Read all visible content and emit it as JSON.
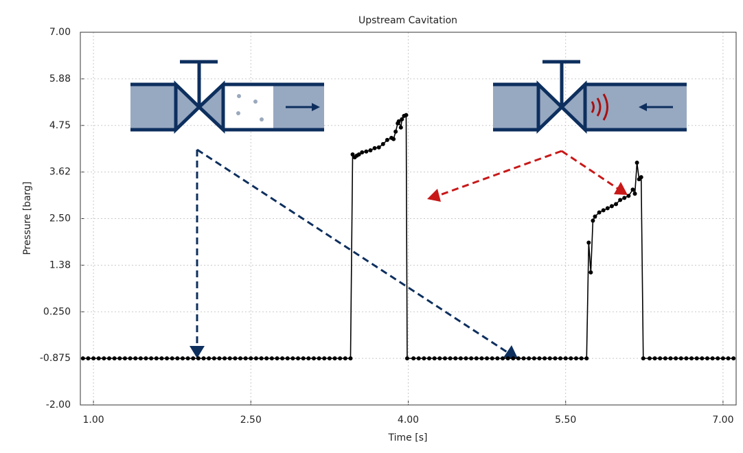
{
  "chart_data": {
    "type": "line",
    "title": "Upstream Cavitation",
    "x_label": "Time [s]",
    "y_label": "Pressure [barg]",
    "xlim": [
      0.875,
      7.125
    ],
    "ylim": [
      -2,
      7
    ],
    "xticks": [
      {
        "value": 1,
        "label": "1.00"
      },
      {
        "value": 2.5,
        "label": "2.50"
      },
      {
        "value": 4,
        "label": "4.00"
      },
      {
        "value": 5.5,
        "label": "5.50"
      },
      {
        "value": 7,
        "label": "7.00"
      }
    ],
    "yticks": [
      {
        "value": -2,
        "label": "-2.00"
      },
      {
        "value": -0.875,
        "label": "-0.875"
      },
      {
        "value": 0.25,
        "label": "0.250"
      },
      {
        "value": 1.375,
        "label": "1.38"
      },
      {
        "value": 2.5,
        "label": "2.50"
      },
      {
        "value": 3.625,
        "label": "3.62"
      },
      {
        "value": 4.75,
        "label": "4.75"
      },
      {
        "value": 5.875,
        "label": "5.88"
      },
      {
        "value": 7,
        "label": "7.00"
      }
    ],
    "grid": true,
    "markers": true,
    "color": "#000000",
    "x": [
      0.9,
      0.95,
      1,
      1.05,
      1.1,
      1.15,
      1.2,
      1.25,
      1.3,
      1.35,
      1.4,
      1.45,
      1.5,
      1.55,
      1.6,
      1.65,
      1.7,
      1.75,
      1.8,
      1.85,
      1.9,
      1.95,
      2,
      2.05,
      2.1,
      2.15,
      2.2,
      2.25,
      2.3,
      2.35,
      2.4,
      2.45,
      2.5,
      2.55,
      2.6,
      2.65,
      2.7,
      2.75,
      2.8,
      2.85,
      2.9,
      2.95,
      3,
      3.05,
      3.1,
      3.15,
      3.2,
      3.25,
      3.3,
      3.35,
      3.4,
      3.45,
      3.47,
      3.49,
      3.51,
      3.53,
      3.56,
      3.6,
      3.64,
      3.68,
      3.72,
      3.76,
      3.8,
      3.84,
      3.86,
      3.88,
      3.9,
      3.91,
      3.93,
      3.94,
      3.96,
      3.98,
      3.99,
      4.05,
      4.1,
      4.15,
      4.2,
      4.25,
      4.3,
      4.35,
      4.4,
      4.45,
      4.5,
      4.55,
      4.6,
      4.65,
      4.7,
      4.75,
      4.8,
      4.85,
      4.9,
      4.95,
      5,
      5.05,
      5.1,
      5.15,
      5.2,
      5.25,
      5.3,
      5.35,
      5.4,
      5.45,
      5.5,
      5.55,
      5.6,
      5.65,
      5.7,
      5.72,
      5.74,
      5.76,
      5.78,
      5.82,
      5.86,
      5.9,
      5.94,
      5.98,
      6.02,
      6.06,
      6.1,
      6.14,
      6.16,
      6.18,
      6.2,
      6.22,
      6.24,
      6.3,
      6.35,
      6.4,
      6.45,
      6.5,
      6.55,
      6.6,
      6.65,
      6.7,
      6.75,
      6.8,
      6.85,
      6.9,
      6.95,
      7,
      7.05,
      7.1
    ],
    "values": [
      -0.875,
      -0.875,
      -0.875,
      -0.875,
      -0.875,
      -0.875,
      -0.875,
      -0.875,
      -0.875,
      -0.875,
      -0.875,
      -0.875,
      -0.875,
      -0.875,
      -0.875,
      -0.875,
      -0.875,
      -0.875,
      -0.875,
      -0.875,
      -0.875,
      -0.875,
      -0.875,
      -0.875,
      -0.875,
      -0.875,
      -0.875,
      -0.875,
      -0.875,
      -0.875,
      -0.875,
      -0.875,
      -0.875,
      -0.875,
      -0.875,
      -0.875,
      -0.875,
      -0.875,
      -0.875,
      -0.875,
      -0.875,
      -0.875,
      -0.875,
      -0.875,
      -0.875,
      -0.875,
      -0.875,
      -0.875,
      -0.875,
      -0.875,
      -0.875,
      -0.875,
      4.05,
      3.98,
      4.02,
      4.05,
      4.1,
      4.12,
      4.15,
      4.2,
      4.22,
      4.3,
      4.4,
      4.45,
      4.42,
      4.6,
      4.8,
      4.85,
      4.7,
      4.9,
      4.98,
      5.0,
      -0.875,
      -0.875,
      -0.875,
      -0.875,
      -0.875,
      -0.875,
      -0.875,
      -0.875,
      -0.875,
      -0.875,
      -0.875,
      -0.875,
      -0.875,
      -0.875,
      -0.875,
      -0.875,
      -0.875,
      -0.875,
      -0.875,
      -0.875,
      -0.875,
      -0.875,
      -0.875,
      -0.875,
      -0.875,
      -0.875,
      -0.875,
      -0.875,
      -0.875,
      -0.875,
      -0.875,
      -0.875,
      -0.875,
      -0.875,
      -0.875,
      1.92,
      1.2,
      2.45,
      2.55,
      2.65,
      2.7,
      2.75,
      2.8,
      2.85,
      2.95,
      3.0,
      3.05,
      3.2,
      3.1,
      3.85,
      3.45,
      3.5,
      -0.875,
      -0.875,
      -0.875,
      -0.875,
      -0.875,
      -0.875,
      -0.875,
      -0.875,
      -0.875,
      -0.875,
      -0.875,
      -0.875,
      -0.875,
      -0.875,
      -0.875,
      -0.875,
      -0.875,
      -0.875
    ]
  }
}
